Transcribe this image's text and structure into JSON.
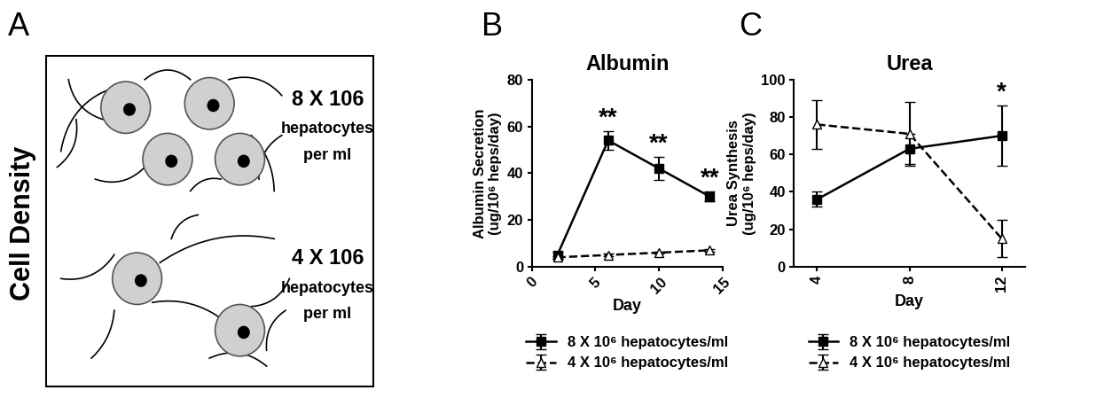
{
  "diagram": {
    "panel": "A",
    "side_label": "Cell Density",
    "groups": [
      {
        "lines": [
          "8 X 106",
          "hepatocytes",
          "per ml"
        ]
      },
      {
        "lines": [
          "4 X 106",
          "hepatocytes",
          "per ml"
        ]
      }
    ]
  },
  "chart_data": [
    {
      "type": "line",
      "panel": "B",
      "title": "Albumin",
      "x_label": "Day",
      "y_label": "Albumin Secretion\n(ug/10⁶ heps/day)",
      "x": [
        2,
        6,
        10,
        14
      ],
      "xlim": [
        0,
        15
      ],
      "xticks": [
        0,
        5,
        10,
        15
      ],
      "ylim": [
        0,
        80
      ],
      "yticks": [
        0,
        20,
        40,
        60,
        80
      ],
      "legend": "below",
      "series": [
        {
          "name": "8 X 10⁶ hepatocytes/ml",
          "color": "#000000",
          "marker": "square",
          "line_style": "solid",
          "values": [
            5,
            54,
            42,
            30
          ],
          "errors": [
            1.5,
            4,
            5,
            2
          ]
        },
        {
          "name": "4 X 10⁶ hepatocytes/ml",
          "color": "#000000",
          "marker": "open_triangle",
          "line_style": "dashed",
          "values": [
            4,
            5,
            6,
            7
          ],
          "errors": [
            0.5,
            0.5,
            0.5,
            0.5
          ]
        }
      ],
      "annotations": [
        {
          "x": 6,
          "text": "**"
        },
        {
          "x": 10,
          "text": "**"
        },
        {
          "x": 14,
          "text": "**"
        }
      ]
    },
    {
      "type": "line",
      "panel": "C",
      "title": "Urea",
      "x_label": "Day",
      "y_label": "Urea Synthesis\n(ug/10⁶ heps/day)",
      "x": [
        4,
        8,
        12
      ],
      "xlim": [
        3,
        13
      ],
      "xticks": [
        4,
        8,
        12
      ],
      "ylim": [
        0,
        100
      ],
      "yticks": [
        0,
        20,
        40,
        60,
        80,
        100
      ],
      "legend": "below",
      "series": [
        {
          "name": "8 X 10⁶ hepatocytes/ml",
          "color": "#000000",
          "marker": "square",
          "line_style": "solid",
          "values": [
            36,
            63,
            70
          ],
          "errors": [
            4,
            8,
            16
          ]
        },
        {
          "name": "4 X 10⁶ hepatocytes/ml",
          "color": "#000000",
          "marker": "open_triangle",
          "line_style": "dashed",
          "values": [
            76,
            71,
            15
          ],
          "errors": [
            13,
            17,
            10
          ]
        }
      ],
      "annotations": [
        {
          "x": 12,
          "text": "*"
        }
      ]
    }
  ]
}
